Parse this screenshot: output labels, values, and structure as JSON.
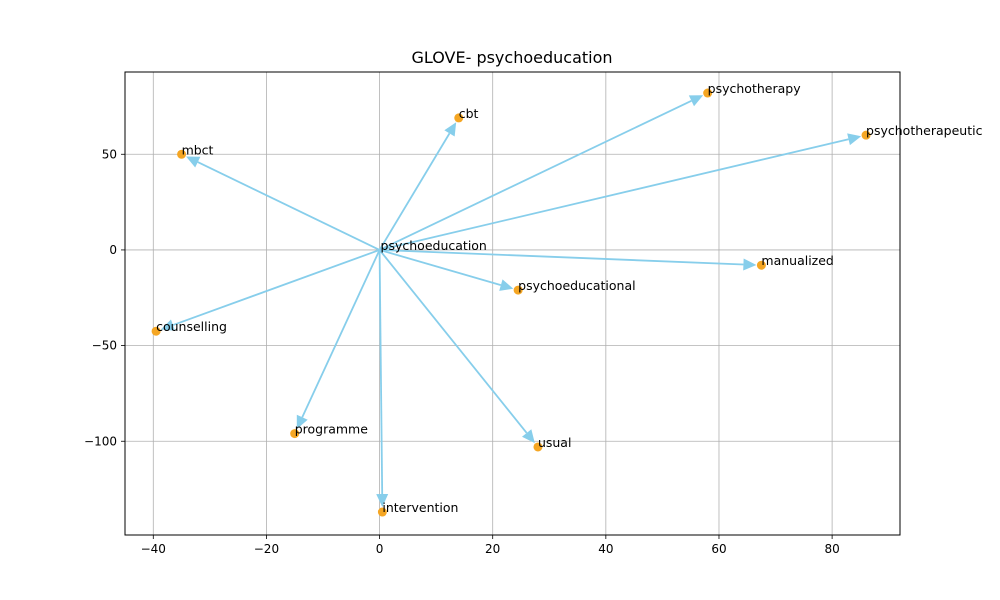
{
  "chart_data": {
    "type": "scatter",
    "title": "GLOVE- psychoeducation",
    "xlabel": "",
    "ylabel": "",
    "xlim": [
      -45,
      92
    ],
    "ylim": [
      -149,
      93
    ],
    "xticks": [
      -40,
      -20,
      0,
      20,
      40,
      60,
      80
    ],
    "yticks": [
      -100,
      -50,
      0,
      50
    ],
    "grid": true,
    "origin": {
      "label": "psychoeducation",
      "x": 0,
      "y": 0
    },
    "points": [
      {
        "label": "mbct",
        "x": -35,
        "y": 50
      },
      {
        "label": "cbt",
        "x": 14,
        "y": 69
      },
      {
        "label": "psychotherapy",
        "x": 58,
        "y": 82
      },
      {
        "label": "psychotherapeutic",
        "x": 86,
        "y": 60
      },
      {
        "label": "manualized",
        "x": 67.5,
        "y": -8
      },
      {
        "label": "psychoeducational",
        "x": 24.5,
        "y": -21
      },
      {
        "label": "counselling",
        "x": -39.5,
        "y": -42.5
      },
      {
        "label": "programme",
        "x": -15,
        "y": -96
      },
      {
        "label": "usual",
        "x": 28,
        "y": -103
      },
      {
        "label": "intervention",
        "x": 0.5,
        "y": -137
      }
    ],
    "colors": {
      "arrow": "#87ceeb",
      "point": "#f5a623",
      "grid": "#b0b0b0"
    }
  }
}
